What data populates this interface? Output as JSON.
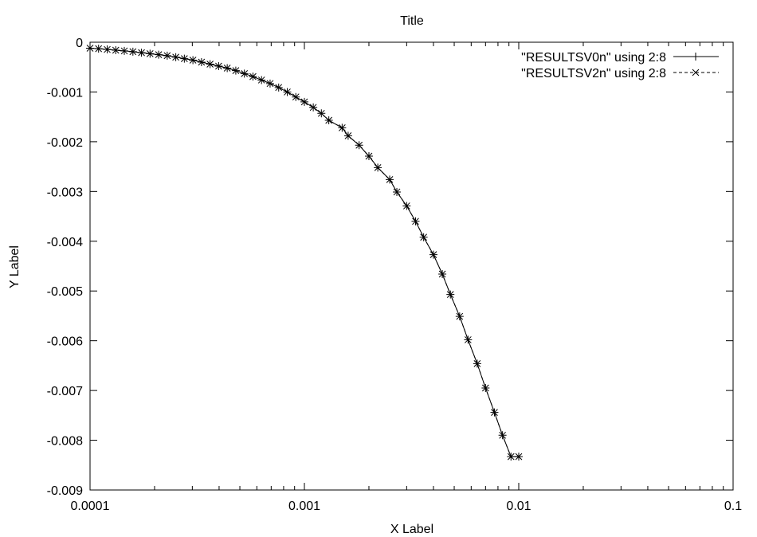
{
  "chart_data": {
    "type": "line",
    "title": "Title",
    "xlabel": "X Label",
    "ylabel": "Y Label",
    "x_scale": "log",
    "xlim": [
      0.0001,
      0.1
    ],
    "ylim": [
      -0.009,
      0
    ],
    "x_ticks": [
      {
        "value": 0.0001,
        "label": "0.0001"
      },
      {
        "value": 0.001,
        "label": "0.001"
      },
      {
        "value": 0.01,
        "label": "0.01"
      },
      {
        "value": 0.1,
        "label": "0.1"
      }
    ],
    "y_ticks": [
      {
        "value": 0,
        "label": "0"
      },
      {
        "value": -0.001,
        "label": "-0.001"
      },
      {
        "value": -0.002,
        "label": "-0.002"
      },
      {
        "value": -0.003,
        "label": "-0.003"
      },
      {
        "value": -0.004,
        "label": "-0.004"
      },
      {
        "value": -0.005,
        "label": "-0.005"
      },
      {
        "value": -0.006,
        "label": "-0.006"
      },
      {
        "value": -0.007,
        "label": "-0.007"
      },
      {
        "value": -0.008,
        "label": "-0.008"
      },
      {
        "value": -0.009,
        "label": "-0.009"
      }
    ],
    "grid": false,
    "legend_position": "top-right",
    "x": [
      0.0001,
      0.0001096,
      0.0001202,
      0.0001318,
      0.0001445,
      0.0001585,
      0.0001738,
      0.0001905,
      0.0002089,
      0.0002291,
      0.0002512,
      0.0002754,
      0.000302,
      0.0003311,
      0.0003631,
      0.0003981,
      0.0004365,
      0.0004786,
      0.0005248,
      0.0005754,
      0.000631,
      0.0006918,
      0.0007586,
      0.0008318,
      0.000912,
      0.001,
      0.0011,
      0.0012,
      0.0013,
      0.0015,
      0.0016,
      0.0018,
      0.002,
      0.0022,
      0.0025,
      0.0027,
      0.003,
      0.0033,
      0.0036,
      0.004,
      0.0044,
      0.0048,
      0.0053,
      0.0058,
      0.0064,
      0.007,
      0.0077,
      0.0084,
      0.0092,
      0.01
    ],
    "series": [
      {
        "name": "\"RESULTSV0n\" using 2:8",
        "marker": "plus",
        "line": "solid",
        "color": "#000000",
        "values": [
          -0.00012,
          -0.00013,
          -0.000145,
          -0.00016,
          -0.000175,
          -0.00019,
          -0.00021,
          -0.00023,
          -0.00025,
          -0.00027,
          -0.0003,
          -0.00033,
          -0.00036,
          -0.0004,
          -0.00044,
          -0.00048,
          -0.00052,
          -0.00057,
          -0.00063,
          -0.00069,
          -0.00076,
          -0.00083,
          -0.00091,
          -0.001,
          -0.0011,
          -0.0012,
          -0.00131,
          -0.00143,
          -0.00157,
          -0.00172,
          -0.00188,
          -0.00207,
          -0.00229,
          -0.00252,
          -0.00276,
          -0.00301,
          -0.00329,
          -0.0036,
          -0.00392,
          -0.00427,
          -0.00466,
          -0.00507,
          -0.00551,
          -0.00598,
          -0.00646,
          -0.00695,
          -0.00744,
          -0.0079,
          -0.00833,
          -0.00833
        ]
      },
      {
        "name": "\"RESULTSV2n\" using 2:8",
        "marker": "cross",
        "line": "dashed",
        "color": "#000000",
        "values": [
          -0.00012,
          -0.00013,
          -0.000145,
          -0.00016,
          -0.000175,
          -0.00019,
          -0.00021,
          -0.00023,
          -0.00025,
          -0.00027,
          -0.0003,
          -0.00033,
          -0.00036,
          -0.0004,
          -0.00044,
          -0.00048,
          -0.00052,
          -0.00057,
          -0.00063,
          -0.00069,
          -0.00076,
          -0.00083,
          -0.00091,
          -0.001,
          -0.0011,
          -0.0012,
          -0.00131,
          -0.00143,
          -0.00157,
          -0.00172,
          -0.00188,
          -0.00207,
          -0.00229,
          -0.00252,
          -0.00276,
          -0.00301,
          -0.00329,
          -0.0036,
          -0.00392,
          -0.00427,
          -0.00466,
          -0.00507,
          -0.00551,
          -0.00598,
          -0.00646,
          -0.00695,
          -0.00744,
          -0.0079,
          -0.00833,
          -0.00833
        ]
      }
    ]
  }
}
